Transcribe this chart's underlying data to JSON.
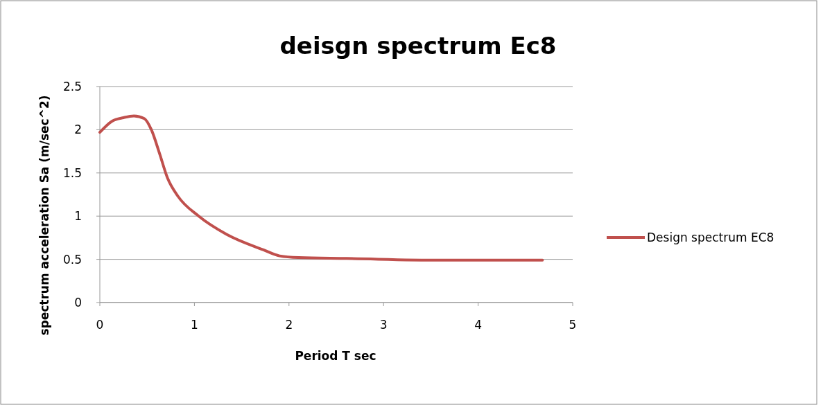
{
  "chart_data": {
    "type": "line",
    "title": "deisgn spectrum Ec8",
    "xlabel": "Period T sec",
    "ylabel": "spectrum acceleration Sa (m/sec^2)",
    "xlim": [
      0,
      5
    ],
    "xticks": [
      0,
      1,
      2,
      3,
      4,
      5
    ],
    "ylim": [
      0,
      2.5
    ],
    "yticks": [
      0,
      0.5,
      1,
      1.5,
      2,
      2.5
    ],
    "grid": "y",
    "legend": "right",
    "series": [
      {
        "name": "Design spectrum EC8",
        "color": "#c0504d",
        "x": [
          0,
          0.13,
          0.25,
          0.36,
          0.47,
          0.545,
          0.63,
          0.716,
          0.826,
          1.046,
          1.34,
          1.73,
          1.9,
          2.1,
          2.61,
          3.59,
          4.68
        ],
        "values": [
          1.97,
          2.1,
          2.14,
          2.16,
          2.13,
          2.0,
          1.73,
          1.44,
          1.23,
          1.0,
          0.79,
          0.61,
          0.54,
          0.52,
          0.51,
          0.49,
          0.49
        ]
      }
    ]
  }
}
